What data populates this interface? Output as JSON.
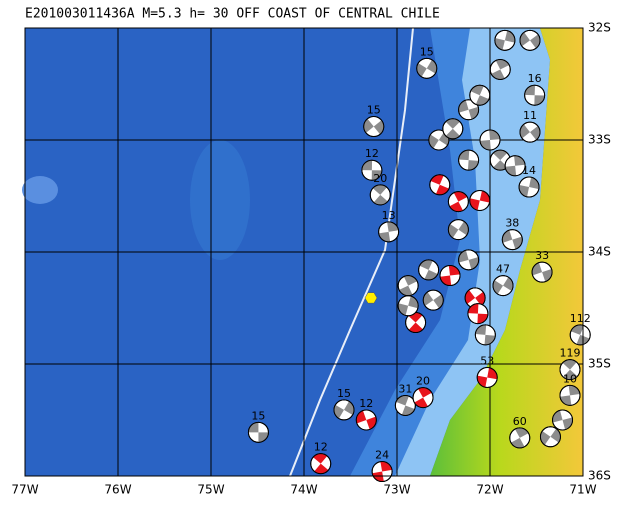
{
  "title": "E201003011436A M=5.3 h= 30 OFF COAST OF CENTRAL CHILE",
  "lon_ticks": [
    {
      "value": -77,
      "label": "77W"
    },
    {
      "value": -76,
      "label": "76W"
    },
    {
      "value": -75,
      "label": "75W"
    },
    {
      "value": -74,
      "label": "74W"
    },
    {
      "value": -73,
      "label": "73W"
    },
    {
      "value": -72,
      "label": "72W"
    },
    {
      "value": -71,
      "label": "71W"
    }
  ],
  "lat_ticks": [
    {
      "value": -32,
      "label": "32S"
    },
    {
      "value": -33,
      "label": "33S"
    },
    {
      "value": -34,
      "label": "34S"
    },
    {
      "value": -35,
      "label": "35S"
    },
    {
      "value": -36,
      "label": "36S"
    }
  ],
  "epicenter": {
    "lon": -73.28,
    "lat": -34.41,
    "color": "#ffee00"
  },
  "events": [
    {
      "lon": -74.49,
      "lat": -35.61,
      "depth": "15",
      "color": "#8c8c8c"
    },
    {
      "lon": -73.82,
      "lat": -35.89,
      "depth": "12",
      "color": "#e8141c"
    },
    {
      "lon": -73.16,
      "lat": -35.96,
      "depth": "24",
      "color": "#e8141c"
    },
    {
      "lon": -73.57,
      "lat": -35.41,
      "depth": "15",
      "color": "#8c8c8c"
    },
    {
      "lon": -73.33,
      "lat": -35.5,
      "depth": "12",
      "color": "#e8141c"
    },
    {
      "lon": -72.91,
      "lat": -35.37,
      "depth": "31",
      "color": "#8c8c8c"
    },
    {
      "lon": -72.72,
      "lat": -35.3,
      "depth": "20",
      "color": "#e8141c"
    },
    {
      "lon": -72.03,
      "lat": -35.12,
      "depth": "53",
      "color": "#e8141c"
    },
    {
      "lon": -73.25,
      "lat": -32.88,
      "depth": "15",
      "color": "#8c8c8c"
    },
    {
      "lon": -73.27,
      "lat": -33.27,
      "depth": "12",
      "color": "#8c8c8c"
    },
    {
      "lon": -73.18,
      "lat": -33.49,
      "depth": "20",
      "color": "#8c8c8c"
    },
    {
      "lon": -73.09,
      "lat": -33.82,
      "depth": "13",
      "color": "#8c8c8c"
    },
    {
      "lon": -72.68,
      "lat": -32.36,
      "depth": "15",
      "color": "#8c8c8c"
    },
    {
      "lon": -71.44,
      "lat": -34.18,
      "depth": "33",
      "color": "#8c8c8c"
    },
    {
      "lon": -71.03,
      "lat": -34.74,
      "depth": "112",
      "color": "#8c8c8c"
    },
    {
      "lon": -71.68,
      "lat": -35.66,
      "depth": "60",
      "color": "#8c8c8c"
    },
    {
      "lon": -71.58,
      "lat": -33.42,
      "depth": "14",
      "color": "#8c8c8c"
    },
    {
      "lon": -71.57,
      "lat": -32.93,
      "depth": "11",
      "color": "#8c8c8c"
    },
    {
      "lon": -71.52,
      "lat": -32.6,
      "depth": "16",
      "color": "#8c8c8c"
    },
    {
      "lon": -71.14,
      "lat": -35.05,
      "depth": "119",
      "color": "#8c8c8c"
    },
    {
      "lon": -71.14,
      "lat": -35.28,
      "depth": "10",
      "color": "#8c8c8c"
    },
    {
      "lon": -71.86,
      "lat": -34.3,
      "depth": "47",
      "color": "#8c8c8c"
    },
    {
      "lon": -71.76,
      "lat": -33.89,
      "depth": "38",
      "color": "#8c8c8c"
    },
    {
      "lon": -72.54,
      "lat": -33.4,
      "color": "#e8141c"
    },
    {
      "lon": -72.34,
      "lat": -33.55,
      "color": "#e8141c"
    },
    {
      "lon": -72.11,
      "lat": -33.54,
      "color": "#e8141c"
    },
    {
      "lon": -72.16,
      "lat": -34.41,
      "color": "#e8141c"
    },
    {
      "lon": -72.13,
      "lat": -34.55,
      "color": "#e8141c"
    },
    {
      "lon": -72.8,
      "lat": -34.63,
      "color": "#e8141c"
    },
    {
      "lon": -72.43,
      "lat": -34.21,
      "color": "#e8141c"
    },
    {
      "lon": -72.55,
      "lat": -33.0,
      "color": "#8c8c8c"
    },
    {
      "lon": -72.23,
      "lat": -32.73,
      "color": "#8c8c8c"
    },
    {
      "lon": -72.11,
      "lat": -32.6,
      "color": "#8c8c8c"
    },
    {
      "lon": -71.89,
      "lat": -32.37,
      "color": "#8c8c8c"
    },
    {
      "lon": -71.84,
      "lat": -32.11,
      "color": "#8c8c8c"
    },
    {
      "lon": -71.57,
      "lat": -32.11,
      "color": "#8c8c8c"
    },
    {
      "lon": -72.23,
      "lat": -33.18,
      "color": "#8c8c8c"
    },
    {
      "lon": -71.89,
      "lat": -33.18,
      "color": "#8c8c8c"
    },
    {
      "lon": -71.73,
      "lat": -33.23,
      "color": "#8c8c8c"
    },
    {
      "lon": -72.34,
      "lat": -33.8,
      "color": "#8c8c8c"
    },
    {
      "lon": -72.23,
      "lat": -34.07,
      "color": "#8c8c8c"
    },
    {
      "lon": -72.66,
      "lat": -34.16,
      "color": "#8c8c8c"
    },
    {
      "lon": -72.88,
      "lat": -34.3,
      "color": "#8c8c8c"
    },
    {
      "lon": -72.88,
      "lat": -34.48,
      "color": "#8c8c8c"
    },
    {
      "lon": -72.61,
      "lat": -34.43,
      "color": "#8c8c8c"
    },
    {
      "lon": -72.05,
      "lat": -34.74,
      "color": "#8c8c8c"
    },
    {
      "lon": -72.4,
      "lat": -32.9,
      "color": "#8c8c8c"
    },
    {
      "lon": -72.0,
      "lat": -33.0,
      "color": "#8c8c8c"
    },
    {
      "lon": -71.35,
      "lat": -35.65,
      "color": "#8c8c8c"
    },
    {
      "lon": -71.22,
      "lat": -35.5,
      "color": "#8c8c8c"
    }
  ]
}
